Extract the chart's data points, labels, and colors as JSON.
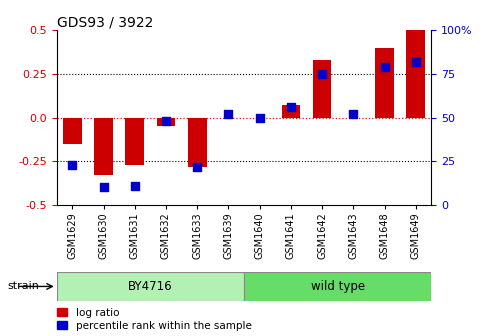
{
  "title": "GDS93 / 3922",
  "samples": [
    "GSM1629",
    "GSM1630",
    "GSM1631",
    "GSM1632",
    "GSM1633",
    "GSM1639",
    "GSM1640",
    "GSM1641",
    "GSM1642",
    "GSM1643",
    "GSM1648",
    "GSM1649"
  ],
  "log_ratio": [
    -0.15,
    -0.33,
    -0.27,
    -0.05,
    -0.28,
    0.0,
    0.0,
    0.07,
    0.33,
    0.0,
    0.4,
    0.5
  ],
  "percentile": [
    23,
    10,
    11,
    48,
    22,
    52,
    50,
    56,
    75,
    52,
    79,
    82
  ],
  "bar_color": "#cc0000",
  "dot_color": "#0000cc",
  "ylim_left": [
    -0.5,
    0.5
  ],
  "ylim_right": [
    0,
    100
  ],
  "yticks_left": [
    -0.5,
    -0.25,
    0.0,
    0.25,
    0.5
  ],
  "yticks_right": [
    0,
    25,
    50,
    75,
    100
  ],
  "hlines": [
    -0.25,
    0.0,
    0.25
  ],
  "hline_colors": [
    "black",
    "red",
    "black"
  ],
  "hline_styles": [
    "dotted",
    "dotted",
    "dotted"
  ],
  "strain_labels": [
    "BY4716",
    "wild type"
  ],
  "by4716_count": 6,
  "strain_color_by": "#b3f0b3",
  "strain_color_wt": "#66dd66",
  "tick_color_left": "#cc0000",
  "tick_color_right": "#0000cc",
  "bar_width": 0.6,
  "dot_size": 40,
  "legend_log": "log ratio",
  "legend_pct": "percentile rank within the sample",
  "strain_text": "strain"
}
